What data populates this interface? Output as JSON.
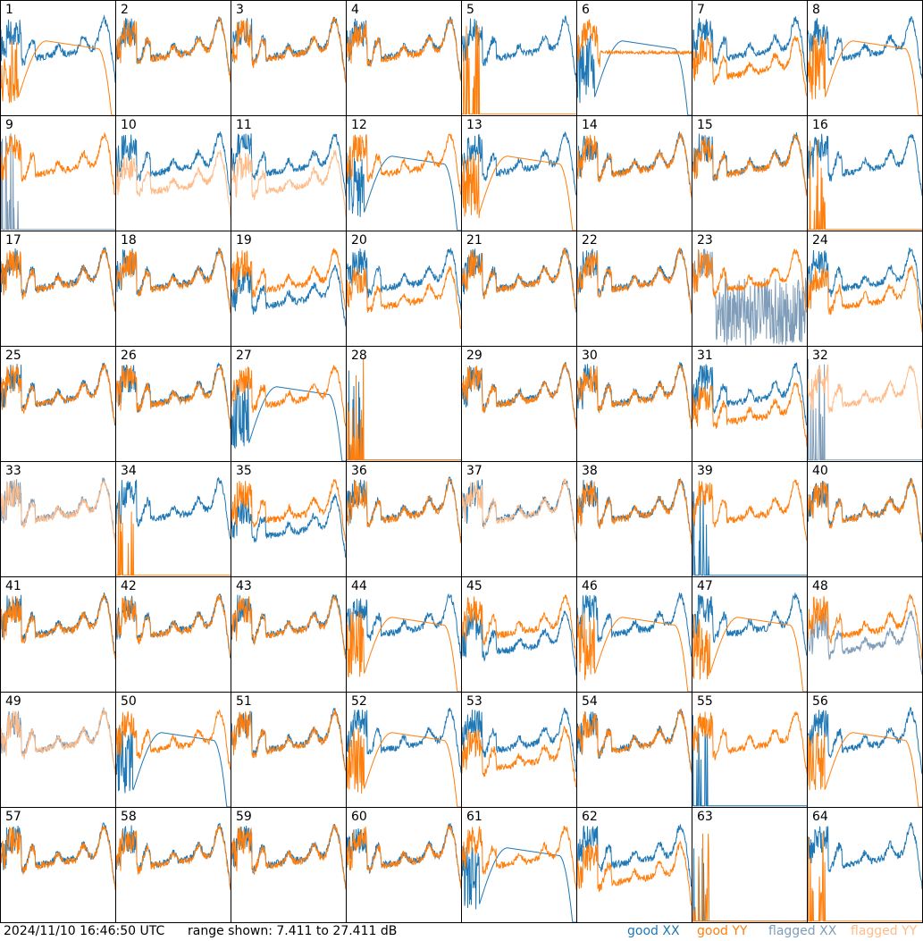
{
  "chart_data": {
    "type": "line",
    "title": "",
    "xlabel": "",
    "ylabel": "dB",
    "ylim": [
      7.411,
      27.411
    ],
    "layout": "8x8 grid of small multiples",
    "colors": {
      "good_xx": "#1f77b4",
      "good_yy": "#ff7f0e",
      "flagged_xx": "#7f9db9",
      "flagged_yy": "#ffbb88"
    },
    "panels": [
      {
        "id": "1",
        "xx": [
          "good",
          "normal"
        ],
        "yy": [
          "good",
          "droop"
        ]
      },
      {
        "id": "2",
        "xx": [
          "good",
          "normal"
        ],
        "yy": [
          "good",
          "normal"
        ]
      },
      {
        "id": "3",
        "xx": [
          "good",
          "normal"
        ],
        "yy": [
          "good",
          "normal"
        ]
      },
      {
        "id": "4",
        "xx": [
          "good",
          "normal"
        ],
        "yy": [
          "good",
          "normal"
        ]
      },
      {
        "id": "5",
        "xx": [
          "good",
          "normal"
        ],
        "yy": [
          "good",
          "dead"
        ]
      },
      {
        "id": "6",
        "xx": [
          "good",
          "droop"
        ],
        "yy": [
          "good",
          "flat"
        ]
      },
      {
        "id": "7",
        "xx": [
          "good",
          "normal"
        ],
        "yy": [
          "good",
          "lower"
        ]
      },
      {
        "id": "8",
        "xx": [
          "good",
          "normal"
        ],
        "yy": [
          "good",
          "droop"
        ]
      },
      {
        "id": "9",
        "xx": [
          "flagged",
          "dead"
        ],
        "yy": [
          "good",
          "normal"
        ]
      },
      {
        "id": "10",
        "xx": [
          "good",
          "normal"
        ],
        "yy": [
          "flagged",
          "lower"
        ]
      },
      {
        "id": "11",
        "xx": [
          "good",
          "normal"
        ],
        "yy": [
          "flagged",
          "lower"
        ]
      },
      {
        "id": "12",
        "xx": [
          "good",
          "droop"
        ],
        "yy": [
          "good",
          "normal"
        ]
      },
      {
        "id": "13",
        "xx": [
          "good",
          "normal"
        ],
        "yy": [
          "good",
          "droop"
        ]
      },
      {
        "id": "14",
        "xx": [
          "good",
          "normal"
        ],
        "yy": [
          "good",
          "normal"
        ]
      },
      {
        "id": "15",
        "xx": [
          "good",
          "normal"
        ],
        "yy": [
          "good",
          "normal"
        ]
      },
      {
        "id": "16",
        "xx": [
          "good",
          "normal"
        ],
        "yy": [
          "good",
          "dead"
        ]
      },
      {
        "id": "17",
        "xx": [
          "good",
          "normal"
        ],
        "yy": [
          "good",
          "normal"
        ]
      },
      {
        "id": "18",
        "xx": [
          "good",
          "normal"
        ],
        "yy": [
          "good",
          "normal"
        ]
      },
      {
        "id": "19",
        "xx": [
          "good",
          "lower"
        ],
        "yy": [
          "good",
          "normal"
        ]
      },
      {
        "id": "20",
        "xx": [
          "good",
          "normal"
        ],
        "yy": [
          "good",
          "lower"
        ]
      },
      {
        "id": "21",
        "xx": [
          "good",
          "normal"
        ],
        "yy": [
          "good",
          "normal"
        ]
      },
      {
        "id": "22",
        "xx": [
          "good",
          "normal"
        ],
        "yy": [
          "good",
          "normal"
        ]
      },
      {
        "id": "23",
        "xx": [
          "flagged",
          "noise"
        ],
        "yy": [
          "good",
          "normal"
        ]
      },
      {
        "id": "24",
        "xx": [
          "good",
          "normal"
        ],
        "yy": [
          "good",
          "lower"
        ]
      },
      {
        "id": "25",
        "xx": [
          "good",
          "normal"
        ],
        "yy": [
          "good",
          "normal"
        ]
      },
      {
        "id": "26",
        "xx": [
          "good",
          "normal"
        ],
        "yy": [
          "good",
          "normal"
        ]
      },
      {
        "id": "27",
        "xx": [
          "good",
          "droop"
        ],
        "yy": [
          "good",
          "normal"
        ]
      },
      {
        "id": "28",
        "xx": [
          "good",
          "dead"
        ],
        "yy": [
          "good",
          "dead"
        ]
      },
      {
        "id": "29",
        "xx": [
          "good",
          "normal"
        ],
        "yy": [
          "good",
          "normal"
        ]
      },
      {
        "id": "30",
        "xx": [
          "good",
          "normal"
        ],
        "yy": [
          "good",
          "normal"
        ]
      },
      {
        "id": "31",
        "xx": [
          "good",
          "normal"
        ],
        "yy": [
          "good",
          "lower"
        ]
      },
      {
        "id": "32",
        "xx": [
          "flagged",
          "dead"
        ],
        "yy": [
          "flagged",
          "normal"
        ]
      },
      {
        "id": "33",
        "xx": [
          "flagged",
          "normal"
        ],
        "yy": [
          "flagged",
          "normal"
        ]
      },
      {
        "id": "34",
        "xx": [
          "good",
          "normal"
        ],
        "yy": [
          "good",
          "dead"
        ]
      },
      {
        "id": "35",
        "xx": [
          "good",
          "lower"
        ],
        "yy": [
          "good",
          "normal"
        ]
      },
      {
        "id": "36",
        "xx": [
          "good",
          "normal"
        ],
        "yy": [
          "good",
          "normal"
        ]
      },
      {
        "id": "37",
        "xx": [
          "good",
          "normal"
        ],
        "yy": [
          "flagged",
          "normal"
        ]
      },
      {
        "id": "38",
        "xx": [
          "good",
          "normal"
        ],
        "yy": [
          "good",
          "normal"
        ]
      },
      {
        "id": "39",
        "xx": [
          "good",
          "dead"
        ],
        "yy": [
          "good",
          "normal"
        ]
      },
      {
        "id": "40",
        "xx": [
          "good",
          "normal"
        ],
        "yy": [
          "good",
          "normal"
        ]
      },
      {
        "id": "41",
        "xx": [
          "good",
          "normal"
        ],
        "yy": [
          "good",
          "normal"
        ]
      },
      {
        "id": "42",
        "xx": [
          "good",
          "normal"
        ],
        "yy": [
          "good",
          "normal"
        ]
      },
      {
        "id": "43",
        "xx": [
          "good",
          "normal"
        ],
        "yy": [
          "good",
          "normal"
        ]
      },
      {
        "id": "44",
        "xx": [
          "good",
          "normal"
        ],
        "yy": [
          "good",
          "droop"
        ]
      },
      {
        "id": "45",
        "xx": [
          "good",
          "lower"
        ],
        "yy": [
          "good",
          "normal"
        ]
      },
      {
        "id": "46",
        "xx": [
          "good",
          "normal"
        ],
        "yy": [
          "good",
          "droop"
        ]
      },
      {
        "id": "47",
        "xx": [
          "good",
          "normal"
        ],
        "yy": [
          "good",
          "droop"
        ]
      },
      {
        "id": "48",
        "xx": [
          "flagged",
          "lower"
        ],
        "yy": [
          "good",
          "normal"
        ]
      },
      {
        "id": "49",
        "xx": [
          "flagged",
          "normal"
        ],
        "yy": [
          "flagged",
          "normal"
        ]
      },
      {
        "id": "50",
        "xx": [
          "good",
          "droop"
        ],
        "yy": [
          "good",
          "normal"
        ]
      },
      {
        "id": "51",
        "xx": [
          "good",
          "normal"
        ],
        "yy": [
          "good",
          "normal"
        ]
      },
      {
        "id": "52",
        "xx": [
          "good",
          "normal"
        ],
        "yy": [
          "good",
          "droop"
        ]
      },
      {
        "id": "53",
        "xx": [
          "good",
          "normal"
        ],
        "yy": [
          "good",
          "lower"
        ]
      },
      {
        "id": "54",
        "xx": [
          "good",
          "normal"
        ],
        "yy": [
          "good",
          "normal"
        ]
      },
      {
        "id": "55",
        "xx": [
          "good",
          "dead"
        ],
        "yy": [
          "good",
          "normal"
        ]
      },
      {
        "id": "56",
        "xx": [
          "good",
          "normal"
        ],
        "yy": [
          "good",
          "droop"
        ]
      },
      {
        "id": "57",
        "xx": [
          "good",
          "normal"
        ],
        "yy": [
          "good",
          "normal"
        ]
      },
      {
        "id": "58",
        "xx": [
          "good",
          "normal"
        ],
        "yy": [
          "good",
          "normal"
        ]
      },
      {
        "id": "59",
        "xx": [
          "good",
          "normal"
        ],
        "yy": [
          "good",
          "normal"
        ]
      },
      {
        "id": "60",
        "xx": [
          "good",
          "normal"
        ],
        "yy": [
          "good",
          "normal"
        ]
      },
      {
        "id": "61",
        "xx": [
          "good",
          "droop"
        ],
        "yy": [
          "good",
          "normal"
        ]
      },
      {
        "id": "62",
        "xx": [
          "good",
          "normal"
        ],
        "yy": [
          "good",
          "lower"
        ]
      },
      {
        "id": "63",
        "xx": [
          "good",
          "dead"
        ],
        "yy": [
          "good",
          "dead"
        ]
      },
      {
        "id": "64",
        "xx": [
          "good",
          "normal"
        ],
        "yy": [
          "good",
          "dead"
        ]
      }
    ],
    "legend": [
      "good XX",
      "good YY",
      "flagged XX",
      "flagged YY"
    ],
    "legend_placement": "bottom-right"
  },
  "footer": {
    "timestamp": "2024/11/10 16:46:50 UTC",
    "range": "range shown: 7.411 to 27.411 dB",
    "legend": {
      "good_xx": "good XX",
      "good_yy": "good YY",
      "flagged_xx": "flagged XX",
      "flagged_yy": "flagged YY"
    }
  }
}
